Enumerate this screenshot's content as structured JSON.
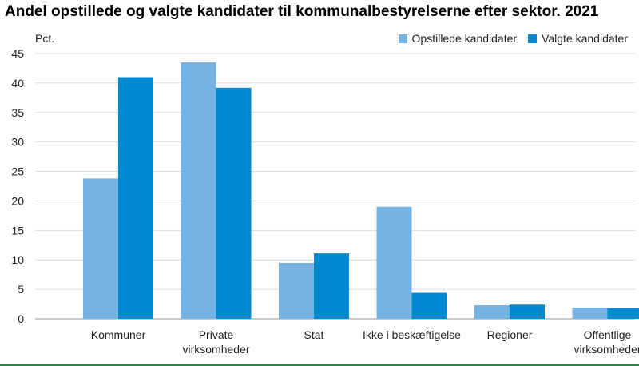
{
  "chart_data": {
    "type": "bar",
    "title": "Andel opstillede og valgte kandidater til kommunalbestyrelserne efter sektor. 2021",
    "ylabel": "Pct.",
    "xlabel": "",
    "ylim": [
      0,
      45
    ],
    "yticks": [
      0,
      5,
      10,
      15,
      20,
      25,
      30,
      35,
      40,
      45
    ],
    "grid": true,
    "legend_position": "top-right",
    "categories": [
      [
        "Kommuner"
      ],
      [
        "Private",
        "virksomheder"
      ],
      [
        "Stat"
      ],
      [
        "Ikke i beskæftigelse"
      ],
      [
        "Regioner"
      ],
      [
        "Offentlige",
        "virksomheder"
      ]
    ],
    "series": [
      {
        "name": "Opstillede kandidater",
        "color": "#74b3e3",
        "values": [
          23.8,
          43.5,
          9.5,
          19.0,
          2.3,
          1.9
        ]
      },
      {
        "name": "Valgte kandidater",
        "color": "#0089d1",
        "values": [
          41.0,
          39.2,
          11.1,
          4.4,
          2.4,
          1.8
        ]
      }
    ]
  }
}
